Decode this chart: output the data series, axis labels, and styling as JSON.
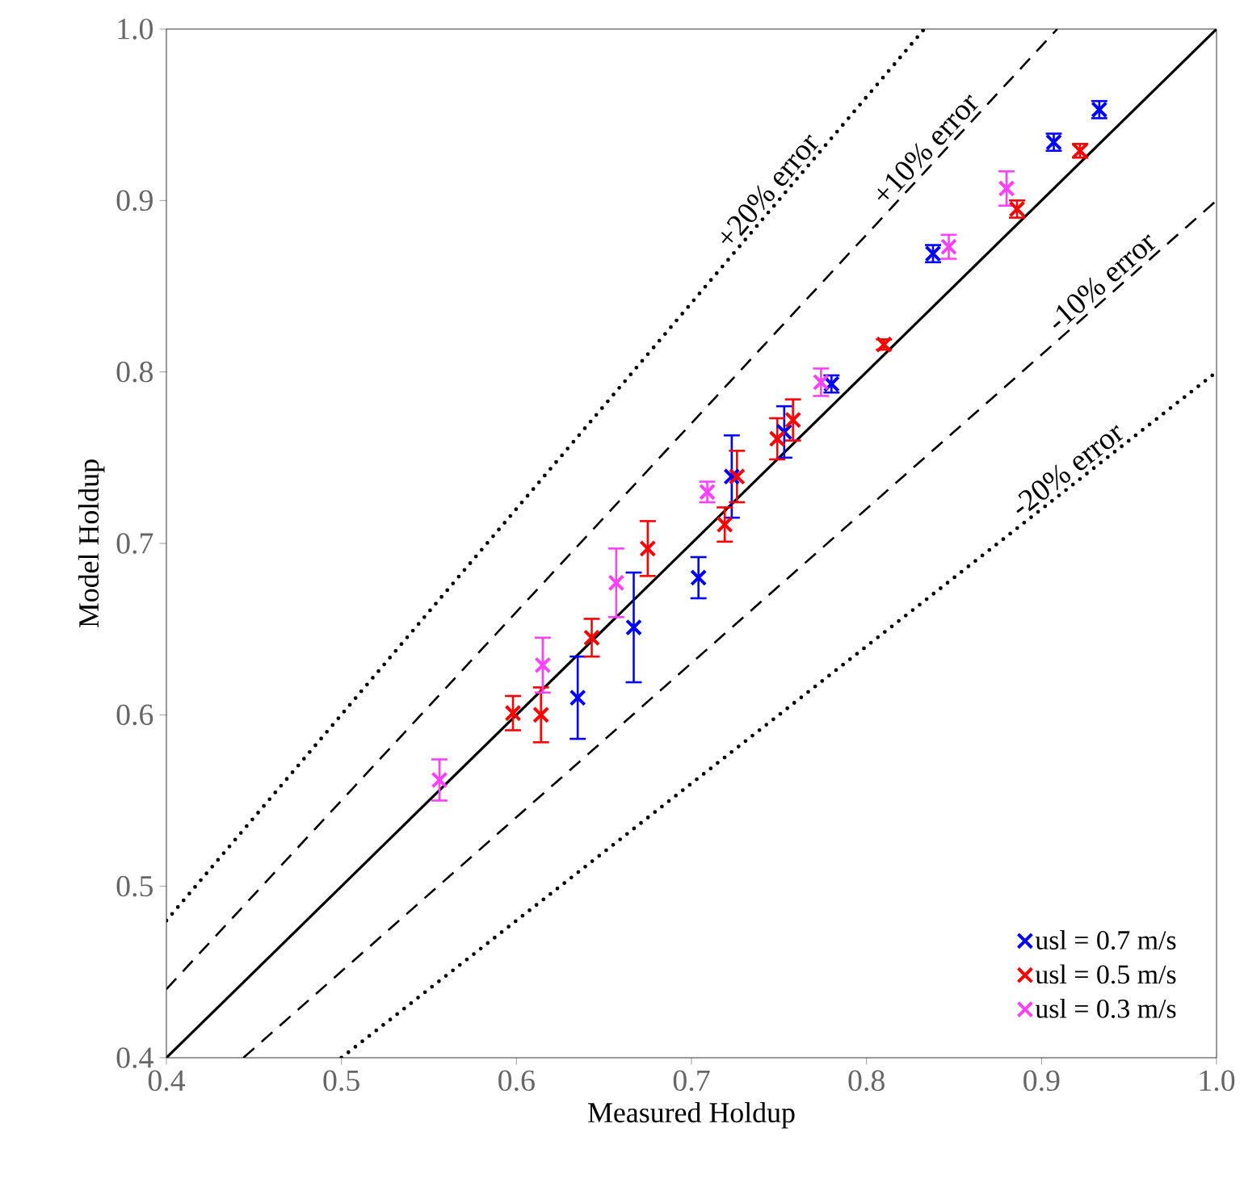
{
  "chart_data": {
    "type": "scatter",
    "xlabel": "Measured Holdup",
    "ylabel": "Model Holdup",
    "xlim": [
      0.4,
      1.0
    ],
    "ylim": [
      0.4,
      1.0
    ],
    "xticks": [
      0.4,
      0.5,
      0.6,
      0.7,
      0.8,
      0.9,
      {
        "value": 1.0,
        "label": "1.0"
      }
    ],
    "yticks": [
      0.4,
      0.5,
      0.6,
      0.7,
      0.8,
      0.9,
      {
        "value": 1.0,
        "label": "1.0"
      }
    ],
    "grid": false,
    "legend": "bottom right",
    "marker": "cross",
    "series": [
      {
        "type": "line",
        "marker": "none",
        "color": "#000000",
        "line_style": "solid",
        "x": [
          0.4,
          1.0
        ],
        "values": [
          0.4,
          1.0
        ]
      },
      {
        "type": "line",
        "marker": "none",
        "color": "#000000",
        "line_style": "dashed",
        "x": [
          0.4,
          0.909
        ],
        "values": [
          0.44,
          1.0
        ]
      },
      {
        "type": "line",
        "marker": "none",
        "color": "#000000",
        "line_style": "dashed",
        "x": [
          0.444,
          1.0
        ],
        "values": [
          0.4,
          0.9
        ]
      },
      {
        "type": "line",
        "marker": "none",
        "color": "#000000",
        "line_style": "dotted",
        "x": [
          0.4,
          0.833
        ],
        "values": [
          0.48,
          1.0
        ]
      },
      {
        "type": "line",
        "marker": "none",
        "color": "#000000",
        "line_style": "dotted",
        "x": [
          0.5,
          1.0
        ],
        "values": [
          0.4,
          0.8
        ]
      },
      {
        "name": "usl = 0.7 m/s",
        "color": "#0000ff",
        "x": [
          0.635,
          0.667,
          0.704,
          0.723,
          0.753,
          0.78,
          0.838,
          0.907,
          0.933
        ],
        "values": [
          0.61,
          0.651,
          0.68,
          0.739,
          0.765,
          0.793,
          0.869,
          0.934,
          0.953
        ],
        "errors": [
          0.024,
          0.032,
          0.012,
          0.024,
          0.015,
          0.005,
          0.005,
          0.005,
          0.005
        ]
      },
      {
        "name": "usl = 0.5 m/s",
        "color": "#ff0000",
        "x": [
          0.598,
          0.614,
          0.643,
          0.675,
          0.719,
          0.726,
          0.749,
          0.758,
          0.81,
          0.886,
          0.922
        ],
        "values": [
          0.601,
          0.6,
          0.645,
          0.697,
          0.711,
          0.739,
          0.761,
          0.772,
          0.816,
          0.895,
          0.929
        ],
        "errors": [
          0.01,
          0.016,
          0.011,
          0.016,
          0.01,
          0.015,
          0.012,
          0.012,
          0.003,
          0.005,
          0.004
        ]
      },
      {
        "name": "usl = 0.3 m/s",
        "color": "#ff40ff",
        "x": [
          0.556,
          0.615,
          0.657,
          0.709,
          0.774,
          0.847,
          0.88
        ],
        "values": [
          0.562,
          0.629,
          0.677,
          0.73,
          0.794,
          0.873,
          0.907
        ],
        "errors": [
          0.012,
          0.016,
          0.02,
          0.006,
          0.008,
          0.007,
          0.01
        ]
      }
    ],
    "annotations": [
      {
        "text": "+20% error",
        "x": 0.75,
        "y": 0.9
      },
      {
        "text": "+10% error",
        "x": 0.84,
        "y": 0.924
      },
      {
        "text": "-10% error",
        "x": 0.94,
        "y": 0.846
      },
      {
        "text": "-20% error",
        "x": 0.92,
        "y": 0.736
      }
    ]
  }
}
